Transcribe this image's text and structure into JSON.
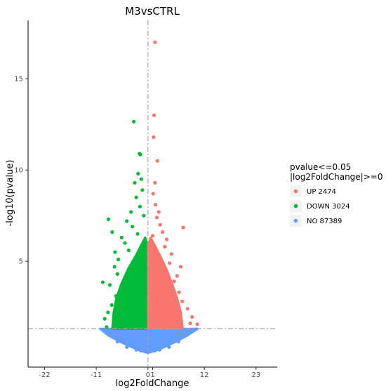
{
  "chart_data": {
    "type": "scatter",
    "title": "M3vsCTRL",
    "xlabel": "log2FoldChange",
    "ylabel": "-log10(pvalue)",
    "xlim": [
      -25.5,
      27.5
    ],
    "ylim": [
      -0.8,
      18.2
    ],
    "x_ticks": [
      -22,
      -11,
      0,
      1,
      12,
      23
    ],
    "x_tick_labels": [
      "-22",
      "-11",
      "0",
      "1",
      "12",
      "23"
    ],
    "y_ticks": [
      5,
      10,
      15
    ],
    "y_tick_labels": [
      "5",
      "10",
      "15"
    ],
    "grid": false,
    "legend_position": "right",
    "legend": {
      "title": [
        "pvalue<=0.05",
        "|log2FoldChange|>=0"
      ],
      "entries": [
        {
          "label": "UP 2474",
          "color": "#F8766D"
        },
        {
          "label": "DOWN 3024",
          "color": "#00BA38"
        },
        {
          "label": "NO 87389",
          "color": "#619CFF"
        }
      ]
    },
    "reference_lines": {
      "vertical_x": 0,
      "horizontal_y": 1.3
    },
    "series": [
      {
        "name": "UP 2474",
        "color": "#F8766D",
        "points": [
          [
            1.5,
            17.0
          ],
          [
            1.3,
            13.0
          ],
          [
            1.2,
            11.8
          ],
          [
            2.0,
            10.5
          ],
          [
            1.5,
            9.3
          ],
          [
            1.1,
            8.7
          ],
          [
            1.6,
            8.1
          ],
          [
            2.3,
            7.7
          ],
          [
            1.9,
            7.4
          ],
          [
            7.5,
            6.85
          ],
          [
            2.6,
            7.0
          ],
          [
            3.1,
            6.6
          ],
          [
            1.0,
            6.4
          ],
          [
            4.0,
            6.2
          ],
          [
            3.6,
            5.8
          ],
          [
            5.0,
            5.4
          ],
          [
            4.6,
            4.9
          ],
          [
            7.0,
            4.7
          ],
          [
            6.2,
            4.2
          ],
          [
            5.6,
            3.9
          ],
          [
            6.6,
            3.3
          ],
          [
            7.3,
            2.8
          ],
          [
            8.4,
            2.4
          ],
          [
            9.4,
            1.95
          ],
          [
            10.5,
            1.55
          ],
          [
            9.0,
            1.6
          ],
          [
            0.8,
            5.8
          ],
          [
            2.8,
            5.0
          ],
          [
            3.4,
            4.4
          ],
          [
            4.3,
            3.5
          ]
        ]
      },
      {
        "name": "DOWN 3024",
        "color": "#00BA38",
        "points": [
          [
            -3.0,
            12.65
          ],
          [
            -1.8,
            10.9
          ],
          [
            -1.6,
            10.85
          ],
          [
            -2.1,
            9.8
          ],
          [
            -1.4,
            9.5
          ],
          [
            -2.8,
            9.3
          ],
          [
            -1.2,
            8.9
          ],
          [
            -2.5,
            8.5
          ],
          [
            -1.7,
            8.0
          ],
          [
            -8.4,
            7.3
          ],
          [
            -3.6,
            7.7
          ],
          [
            -4.5,
            7.2
          ],
          [
            -3.3,
            6.9
          ],
          [
            -7.6,
            6.6
          ],
          [
            -5.6,
            6.3
          ],
          [
            -4.9,
            6.0
          ],
          [
            -7.0,
            5.5
          ],
          [
            -6.3,
            5.1
          ],
          [
            -7.1,
            4.7
          ],
          [
            -6.5,
            4.3
          ],
          [
            -9.6,
            3.85
          ],
          [
            -8.1,
            3.7
          ],
          [
            -6.8,
            3.1
          ],
          [
            -7.7,
            2.6
          ],
          [
            -8.5,
            2.2
          ],
          [
            -9.2,
            1.85
          ],
          [
            -8.8,
            1.4
          ],
          [
            -0.9,
            7.5
          ],
          [
            -2.2,
            6.5
          ],
          [
            -4.1,
            5.6
          ]
        ]
      },
      {
        "name": "NO 87389",
        "color": "#619CFF",
        "points": [
          [
            -9.5,
            1.25
          ],
          [
            -7.5,
            1.1
          ],
          [
            -5.5,
            0.7
          ],
          [
            -3.5,
            0.35
          ],
          [
            -1.5,
            0.1
          ],
          [
            0.0,
            0.02
          ],
          [
            1.5,
            0.1
          ],
          [
            3.5,
            0.35
          ],
          [
            5.5,
            0.7
          ],
          [
            7.5,
            1.05
          ],
          [
            9.5,
            1.2
          ],
          [
            10.2,
            1.28
          ],
          [
            -6.5,
            0.6
          ],
          [
            -4.5,
            0.3
          ],
          [
            -2.5,
            0.15
          ],
          [
            2.5,
            0.15
          ],
          [
            4.5,
            0.3
          ],
          [
            6.5,
            0.6
          ]
        ]
      }
    ]
  }
}
